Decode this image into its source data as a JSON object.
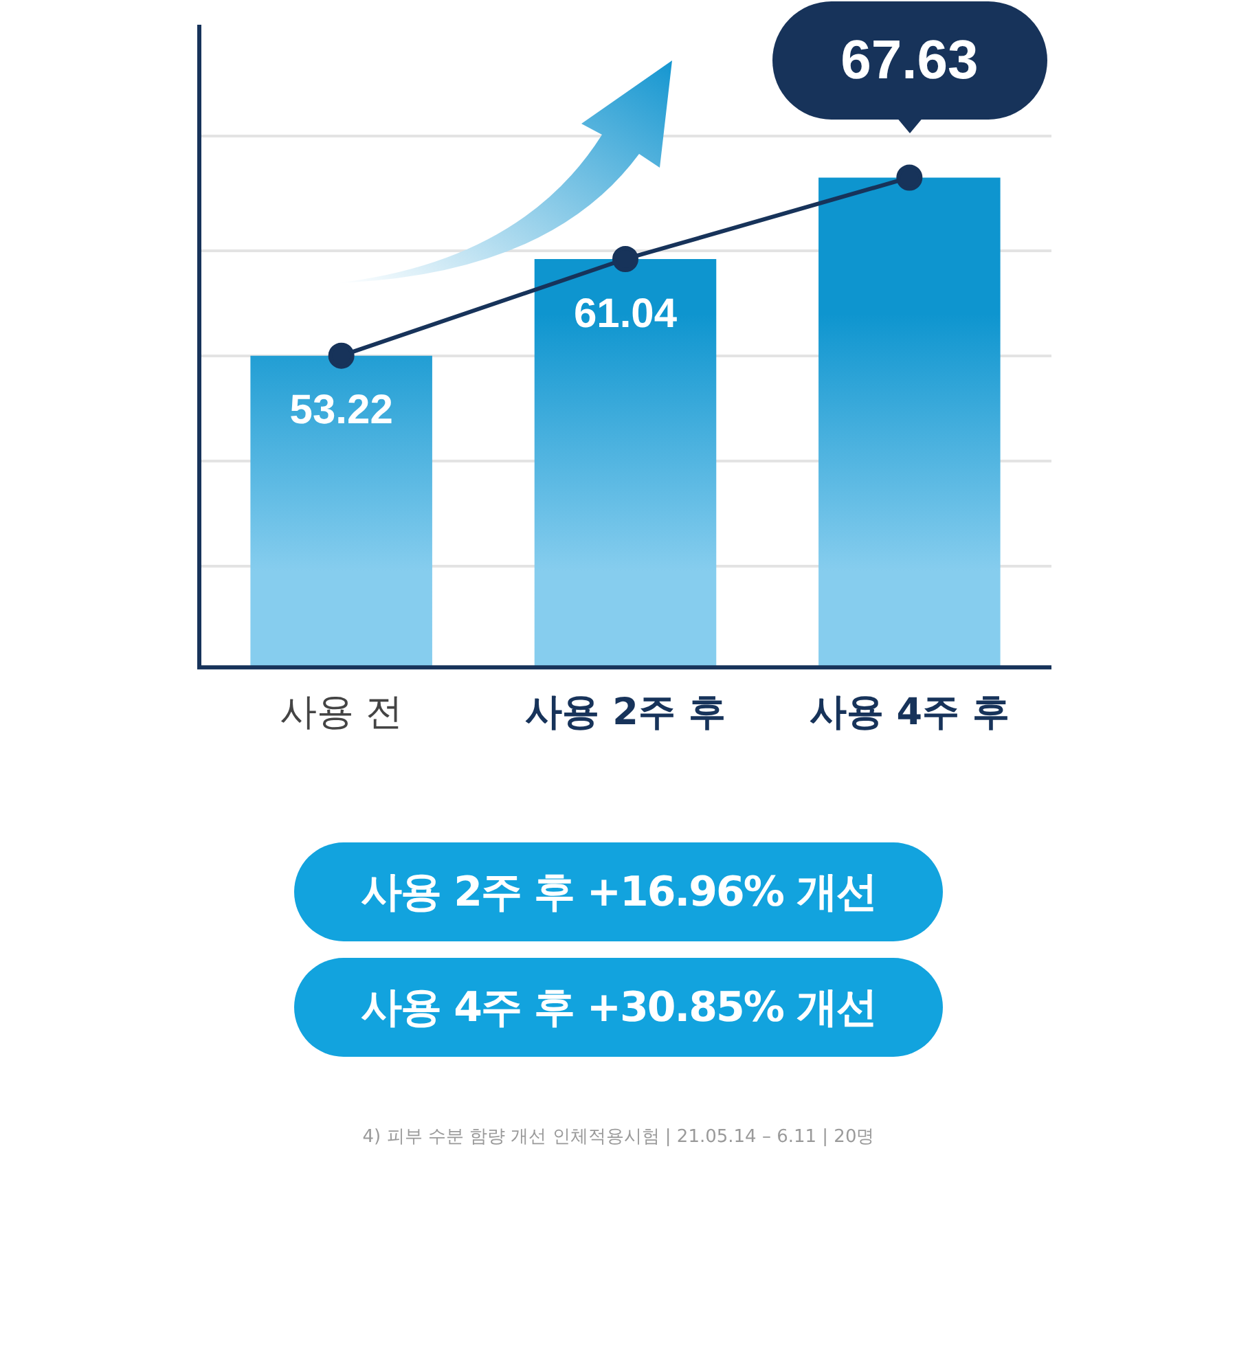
{
  "chart_data": {
    "type": "bar",
    "categories": [
      "사용 전",
      "사용 2주 후",
      "사용 4주 후"
    ],
    "series": [
      {
        "color": "#0e95cf",
        "values": [
          53.22,
          61.04,
          67.63
        ],
        "value_labels": [
          "53.22",
          "61.04",
          "67.63"
        ]
      },
      {
        "type": "line",
        "color": "#17335a",
        "values": [
          53.22,
          61.04,
          67.63
        ],
        "marker": "circle"
      }
    ],
    "ylim": [
      28,
      80
    ],
    "yticks": [
      {
        "value": 36.2,
        "label": null
      },
      {
        "value": 44.7,
        "label": null
      },
      {
        "value": 53.2,
        "label": null
      },
      {
        "value": 61.7,
        "label": null
      },
      {
        "value": 71,
        "label": null
      }
    ],
    "tick_labels": "x",
    "grid": "y",
    "legend": false,
    "annotations": [
      "사용 2주 후 +16.96% 개선",
      "사용 4주 후 +30.85% 개선",
      "4) 피부 수분 함량 개선 인체적용시험 | 21.05.14 – 6.11 | 20명"
    ]
  }
}
